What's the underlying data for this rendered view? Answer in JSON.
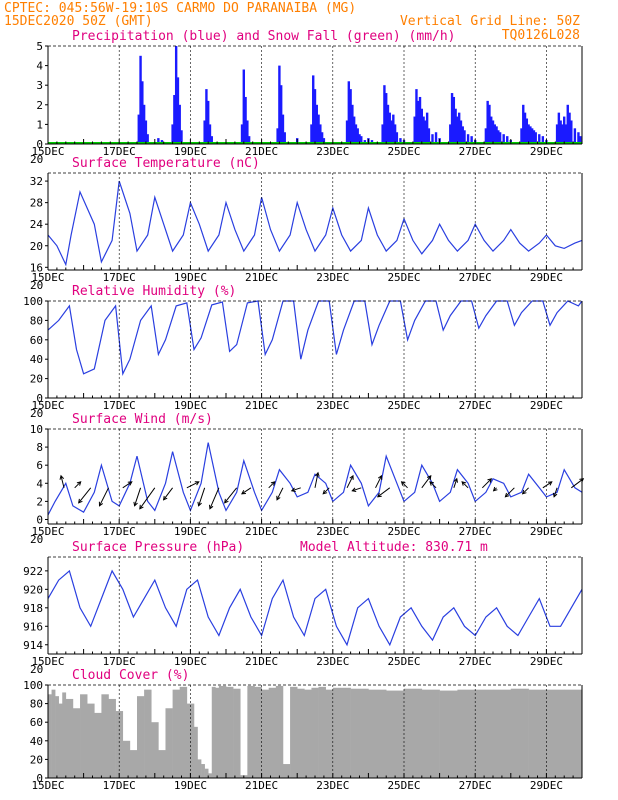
{
  "header": {
    "line1_left": "CPTEC:  045:56W-19:10S  CARMO DO PARANAIBA (MG)",
    "line2_left": "15DEC2020 50Z (GMT)",
    "line2_right": "Vertical Grid Line: 50Z",
    "line3_right": "TQ0126L028"
  },
  "colors": {
    "line": "#2a3fe0",
    "bar": "#1a1aff",
    "snow": "#00cc00",
    "cloud": "#a8a8a8",
    "title": "#e0007f",
    "header": "#ff7f00"
  },
  "x_tick_labels": [
    "15DEC",
    "17DEC",
    "19DEC",
    "21DEC",
    "23DEC",
    "25DEC",
    "27DEC",
    "29DEC"
  ],
  "x_tick_fragment": "20",
  "panels": {
    "precip": {
      "title": "Precipitation (blue) and Snow Fall (green) (mm/h)",
      "yticks": [
        "0",
        "1",
        "2",
        "3",
        "4",
        "5"
      ]
    },
    "temp": {
      "title": "Surface Temperature (nC)",
      "yticks": [
        "16",
        "20",
        "24",
        "28",
        "32"
      ]
    },
    "rh": {
      "title": "Relative Humidity (%)",
      "yticks": [
        "0",
        "20",
        "40",
        "60",
        "80",
        "100"
      ]
    },
    "wind": {
      "title": "Surface Wind (m/s)",
      "yticks": [
        "0",
        "2",
        "4",
        "6",
        "8",
        "10"
      ]
    },
    "pressure": {
      "title": "Surface Pressure (hPa)",
      "altitude_label": "Model Altitude: 830.71 m",
      "yticks": [
        "914",
        "916",
        "918",
        "920",
        "922"
      ]
    },
    "cloud": {
      "title": "Cloud Cover (%)",
      "yticks": [
        "0",
        "20",
        "40",
        "60",
        "80",
        "100"
      ]
    }
  },
  "chart_data": [
    {
      "type": "bar",
      "x_unit": "days since 15DEC2020 00Z",
      "xlim": [
        0,
        15
      ],
      "ylim": [
        0,
        5
      ],
      "ylabel": "mm/h",
      "series": [
        {
          "name": "Precipitation",
          "x": [
            2.55,
            2.6,
            2.65,
            2.7,
            2.75,
            2.8,
            3.1,
            3.2,
            3.5,
            3.55,
            3.6,
            3.65,
            3.7,
            3.75,
            4.4,
            4.45,
            4.5,
            4.55,
            4.6,
            5.45,
            5.5,
            5.55,
            5.6,
            5.65,
            6.45,
            6.5,
            6.55,
            6.6,
            6.65,
            7.0,
            7.4,
            7.45,
            7.5,
            7.55,
            7.6,
            7.65,
            7.7,
            7.75,
            8.4,
            8.45,
            8.5,
            8.55,
            8.6,
            8.65,
            8.7,
            8.75,
            8.8,
            8.9,
            9.0,
            9.1,
            9.4,
            9.45,
            9.5,
            9.55,
            9.6,
            9.65,
            9.7,
            9.75,
            9.8,
            9.9,
            10.0,
            10.3,
            10.35,
            10.4,
            10.45,
            10.5,
            10.55,
            10.6,
            10.65,
            10.7,
            10.8,
            10.9,
            11.0,
            11.3,
            11.35,
            11.4,
            11.45,
            11.5,
            11.55,
            11.6,
            11.65,
            11.7,
            11.8,
            11.9,
            12.0,
            12.3,
            12.35,
            12.4,
            12.45,
            12.5,
            12.55,
            12.6,
            12.65,
            12.7,
            12.8,
            12.9,
            13.0,
            13.3,
            13.35,
            13.4,
            13.45,
            13.5,
            13.55,
            13.6,
            13.65,
            13.7,
            13.8,
            13.9,
            14.0,
            14.3,
            14.35,
            14.4,
            14.45,
            14.5,
            14.55,
            14.6,
            14.65,
            14.7,
            14.8,
            14.9,
            14.95
          ],
          "values": [
            1.5,
            4.5,
            3.2,
            2.0,
            1.2,
            0.5,
            0.3,
            0.2,
            1.0,
            2.5,
            5.0,
            3.4,
            2.0,
            0.7,
            1.2,
            2.8,
            2.2,
            1.0,
            0.4,
            1.0,
            3.8,
            2.4,
            1.2,
            0.4,
            0.8,
            4.0,
            3.0,
            1.5,
            0.6,
            0.3,
            1.0,
            3.5,
            2.8,
            2.0,
            1.5,
            1.0,
            0.6,
            0.3,
            1.2,
            3.2,
            2.8,
            2.0,
            1.4,
            1.0,
            0.8,
            0.5,
            0.4,
            0.2,
            0.3,
            0.2,
            1.0,
            3.0,
            2.6,
            2.0,
            1.6,
            1.2,
            1.5,
            1.0,
            0.6,
            0.3,
            0.2,
            1.4,
            2.8,
            2.2,
            2.4,
            1.8,
            1.4,
            1.2,
            1.6,
            0.8,
            0.5,
            0.6,
            0.3,
            1.0,
            2.6,
            2.4,
            1.8,
            1.4,
            1.6,
            1.2,
            0.9,
            0.7,
            0.5,
            0.4,
            0.2,
            0.8,
            2.2,
            2.0,
            1.4,
            1.2,
            1.0,
            0.9,
            0.7,
            0.6,
            0.5,
            0.4,
            0.2,
            0.8,
            2.0,
            1.6,
            1.3,
            1.0,
            0.9,
            0.8,
            0.7,
            0.6,
            0.5,
            0.4,
            0.2,
            1.0,
            1.6,
            1.2,
            1.0,
            1.4,
            1.0,
            2.0,
            1.6,
            1.2,
            0.8,
            0.6,
            0.4
          ]
        },
        {
          "name": "Snow Fall",
          "x": [
            0,
            15
          ],
          "values": [
            0,
            0
          ]
        }
      ]
    },
    {
      "type": "line",
      "x_unit": "days since 15DEC2020 00Z",
      "xlim": [
        0,
        15
      ],
      "ylim": [
        15.5,
        33.5
      ],
      "ylabel": "nC",
      "series": [
        {
          "name": "Surface Temperature",
          "x": [
            0,
            0.25,
            0.5,
            0.65,
            0.9,
            1.3,
            1.5,
            1.8,
            2.0,
            2.3,
            2.5,
            2.8,
            3.0,
            3.25,
            3.5,
            3.8,
            4.0,
            4.25,
            4.5,
            4.8,
            5.0,
            5.25,
            5.5,
            5.8,
            6.0,
            6.25,
            6.5,
            6.8,
            7.0,
            7.25,
            7.5,
            7.8,
            8.0,
            8.25,
            8.5,
            8.8,
            9.0,
            9.25,
            9.5,
            9.8,
            10.0,
            10.25,
            10.5,
            10.8,
            11.0,
            11.25,
            11.5,
            11.8,
            12.0,
            12.25,
            12.5,
            12.8,
            13.0,
            13.25,
            13.5,
            13.8,
            14.0,
            14.25,
            14.5,
            14.8,
            15.0
          ],
          "values": [
            22,
            20,
            16.5,
            22,
            30,
            24,
            17,
            21,
            32,
            26,
            19,
            22,
            29,
            24,
            19,
            22,
            28,
            24,
            19,
            22,
            28,
            23,
            19,
            22,
            29,
            23,
            19,
            22,
            28,
            23,
            19,
            22,
            27,
            22,
            19,
            21,
            27,
            22,
            19,
            21,
            25,
            21,
            18.5,
            21,
            24,
            21,
            19,
            21,
            24,
            21,
            19,
            21,
            23,
            20.5,
            19,
            20.5,
            22,
            20,
            19.5,
            20.5,
            21
          ]
        }
      ]
    },
    {
      "type": "line",
      "x_unit": "days since 15DEC2020 00Z",
      "xlim": [
        0,
        15
      ],
      "ylim": [
        0,
        100
      ],
      "ylabel": "%",
      "series": [
        {
          "name": "Relative Humidity",
          "x": [
            0,
            0.3,
            0.6,
            0.8,
            1.0,
            1.3,
            1.6,
            1.9,
            2.1,
            2.3,
            2.6,
            2.9,
            3.1,
            3.3,
            3.6,
            3.9,
            4.1,
            4.3,
            4.6,
            4.9,
            5.1,
            5.3,
            5.6,
            5.9,
            6.1,
            6.3,
            6.6,
            6.9,
            7.1,
            7.3,
            7.6,
            7.9,
            8.1,
            8.3,
            8.6,
            8.9,
            9.1,
            9.3,
            9.6,
            9.9,
            10.1,
            10.3,
            10.6,
            10.9,
            11.1,
            11.3,
            11.6,
            11.9,
            12.1,
            12.3,
            12.6,
            12.9,
            13.1,
            13.3,
            13.6,
            13.9,
            14.1,
            14.3,
            14.6,
            14.9,
            15.0
          ],
          "values": [
            70,
            80,
            95,
            50,
            25,
            30,
            80,
            95,
            25,
            40,
            80,
            95,
            45,
            60,
            95,
            98,
            50,
            62,
            96,
            99,
            48,
            55,
            98,
            100,
            45,
            60,
            100,
            100,
            40,
            70,
            100,
            100,
            45,
            70,
            100,
            100,
            55,
            75,
            100,
            100,
            60,
            80,
            100,
            100,
            70,
            85,
            100,
            100,
            72,
            85,
            100,
            100,
            75,
            88,
            100,
            100,
            75,
            88,
            100,
            95,
            100
          ]
        }
      ]
    },
    {
      "type": "line",
      "x_unit": "days since 15DEC2020 00Z",
      "xlim": [
        0,
        15
      ],
      "ylim": [
        -0.5,
        10
      ],
      "ylabel": "m/s",
      "series": [
        {
          "name": "Wind Speed",
          "x": [
            0,
            0.2,
            0.5,
            0.7,
            1.0,
            1.3,
            1.5,
            1.8,
            2.0,
            2.3,
            2.5,
            2.8,
            3.0,
            3.3,
            3.5,
            3.8,
            4.0,
            4.3,
            4.5,
            4.8,
            5.0,
            5.3,
            5.5,
            5.8,
            6.0,
            6.3,
            6.5,
            6.8,
            7.0,
            7.3,
            7.5,
            7.8,
            8.0,
            8.3,
            8.5,
            8.8,
            9.0,
            9.3,
            9.5,
            9.8,
            10.0,
            10.3,
            10.5,
            10.8,
            11.0,
            11.3,
            11.5,
            11.8,
            12.0,
            12.3,
            12.5,
            12.8,
            13.0,
            13.3,
            13.5,
            13.8,
            14.0,
            14.3,
            14.5,
            14.8,
            15.0
          ],
          "values": [
            0.5,
            2,
            4,
            1.5,
            0.8,
            3,
            6,
            2,
            1.5,
            4,
            7,
            2,
            1,
            4,
            7.5,
            3,
            1,
            4,
            8.5,
            3,
            1,
            3,
            6.5,
            3,
            1,
            3,
            5.5,
            4,
            2.5,
            3,
            5,
            4,
            2,
            3,
            6,
            4,
            1.5,
            3,
            7,
            4,
            2,
            3,
            6,
            4,
            2,
            3,
            5.5,
            4,
            2,
            3,
            4.5,
            4,
            2.5,
            3,
            5,
            3.5,
            2.5,
            3,
            5.5,
            3.5,
            3
          ]
        }
      ],
      "arrows": {
        "x": [
          0.45,
          0.75,
          1.2,
          1.7,
          2.1,
          2.6,
          3.0,
          3.5,
          3.9,
          4.4,
          4.8,
          5.3,
          5.7,
          6.2,
          6.6,
          7.1,
          7.5,
          7.9,
          8.4,
          8.8,
          9.2,
          9.6,
          10.1,
          10.5,
          10.9,
          11.4,
          11.8,
          12.2,
          12.6,
          13.1,
          13.5,
          13.9,
          14.3,
          14.7
        ],
        "u": [
          -1,
          2,
          -4,
          -3,
          3,
          -2,
          -5,
          -3,
          4,
          -2,
          -3,
          -4,
          -3,
          2,
          -2,
          -3,
          1,
          -2,
          2,
          -3,
          2,
          -4,
          -2,
          3,
          -2,
          1,
          -2,
          3,
          -1,
          -3,
          -2,
          3,
          -1,
          4
        ],
        "v": [
          4,
          2,
          -5,
          -6,
          2,
          -6,
          -7,
          -4,
          2,
          -6,
          -7,
          -5,
          -2,
          2,
          -4,
          -1,
          5,
          -2,
          4,
          -1,
          4,
          -3,
          2,
          4,
          2,
          3,
          2,
          3,
          -1,
          -3,
          -2,
          2,
          -3,
          3
        ]
      }
    },
    {
      "type": "line",
      "x_unit": "days since 15DEC2020 00Z",
      "xlim": [
        0,
        15
      ],
      "ylim": [
        913,
        923.5
      ],
      "ylabel": "hPa",
      "series": [
        {
          "name": "Surface Pressure",
          "x": [
            0,
            0.3,
            0.6,
            0.9,
            1.2,
            1.5,
            1.8,
            2.1,
            2.4,
            2.7,
            3.0,
            3.3,
            3.6,
            3.9,
            4.2,
            4.5,
            4.8,
            5.1,
            5.4,
            5.7,
            6.0,
            6.3,
            6.6,
            6.9,
            7.2,
            7.5,
            7.8,
            8.1,
            8.4,
            8.7,
            9.0,
            9.3,
            9.6,
            9.9,
            10.2,
            10.5,
            10.8,
            11.1,
            11.4,
            11.7,
            12.0,
            12.3,
            12.6,
            12.9,
            13.2,
            13.5,
            13.8,
            14.1,
            14.4,
            14.7,
            15.0
          ],
          "values": [
            919,
            921,
            922,
            918,
            916,
            919,
            922,
            920,
            917,
            919,
            921,
            918,
            916,
            920,
            921,
            917,
            915,
            918,
            920,
            917,
            915,
            919,
            921,
            917,
            915,
            919,
            920,
            916,
            914,
            918,
            919,
            916,
            914,
            917,
            918,
            916,
            914.5,
            917,
            918,
            916,
            915,
            917,
            918,
            916,
            915,
            917,
            919,
            916,
            916,
            918,
            920
          ]
        }
      ]
    },
    {
      "type": "area",
      "x_unit": "days since 15DEC2020 00Z",
      "xlim": [
        0,
        15
      ],
      "ylim": [
        0,
        100
      ],
      "ylabel": "%",
      "series": [
        {
          "name": "Cloud Cover",
          "x": [
            0,
            0.1,
            0.2,
            0.3,
            0.4,
            0.5,
            0.7,
            0.9,
            1.1,
            1.3,
            1.5,
            1.7,
            1.9,
            2.1,
            2.3,
            2.5,
            2.7,
            2.9,
            3.1,
            3.3,
            3.5,
            3.7,
            3.9,
            4.1,
            4.2,
            4.3,
            4.4,
            4.5,
            4.6,
            4.7,
            4.8,
            5.0,
            5.2,
            5.4,
            5.6,
            5.8,
            6.0,
            6.2,
            6.4,
            6.6,
            6.8,
            7.0,
            7.2,
            7.4,
            7.6,
            7.8,
            8.0,
            8.5,
            9.0,
            9.5,
            10.0,
            10.5,
            11.0,
            11.5,
            12.0,
            12.5,
            13.0,
            13.5,
            14.0,
            14.5,
            15.0
          ],
          "values": [
            90,
            95,
            88,
            80,
            92,
            85,
            75,
            90,
            80,
            70,
            90,
            85,
            72,
            40,
            30,
            88,
            95,
            60,
            30,
            75,
            95,
            98,
            80,
            55,
            20,
            15,
            10,
            5,
            98,
            97,
            99,
            98,
            96,
            3,
            99,
            98,
            95,
            97,
            99,
            15,
            98,
            96,
            95,
            97,
            98,
            95,
            97,
            96,
            95,
            94,
            96,
            95,
            94,
            95,
            95,
            95,
            96,
            95,
            95,
            95,
            95
          ]
        }
      ]
    }
  ]
}
